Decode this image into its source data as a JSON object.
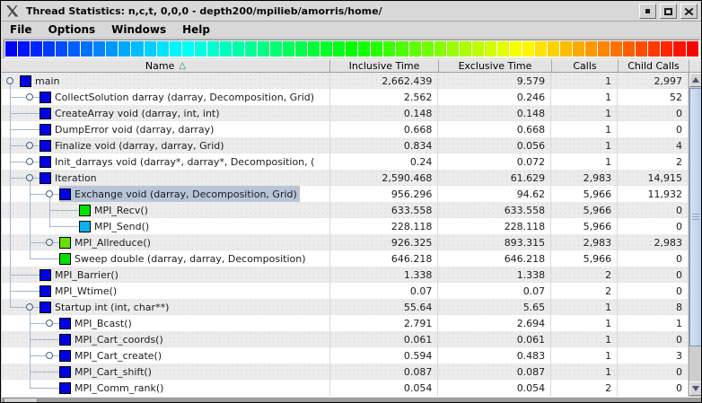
{
  "window": {
    "title": "Thread Statistics: n,c,t, 0,0,0 - depth200/mpilieb/amorris/home/",
    "controls": [
      "minimize",
      "maximize",
      "close"
    ]
  },
  "menu": {
    "items": [
      "File",
      "Options",
      "Windows",
      "Help"
    ]
  },
  "gradient": {
    "type": "color-scale",
    "segments": 55,
    "hue_start": 240,
    "hue_end": 0
  },
  "colors": {
    "selection": "#b7c5d7",
    "stripe": "#ececec",
    "tree_line": "#a4b6cc",
    "sort_indicator": "#0a8585"
  },
  "table": {
    "columns": [
      {
        "key": "name",
        "label": "Name",
        "sort_indicator": "△"
      },
      {
        "key": "inclusive",
        "label": "Inclusive Time"
      },
      {
        "key": "exclusive",
        "label": "Exclusive Time"
      },
      {
        "key": "calls",
        "label": "Calls"
      },
      {
        "key": "child_calls",
        "label": "Child Calls"
      }
    ],
    "rows": [
      {
        "name": "main",
        "depth": 0,
        "node": "expanded",
        "icon": "#0202e2",
        "selected": false,
        "inclusive": "2,662.439",
        "exclusive": "9.579",
        "calls": "1",
        "child_calls": "2,997"
      },
      {
        "name": "CollectSolution darray (darray, Decomposition, Grid)",
        "depth": 1,
        "node": "collapsed",
        "icon": "#0202e2",
        "selected": false,
        "inclusive": "2.562",
        "exclusive": "0.246",
        "calls": "1",
        "child_calls": "52"
      },
      {
        "name": "CreateArray void (darray, int, int)",
        "depth": 1,
        "node": "leaf",
        "icon": "#0202e2",
        "selected": false,
        "inclusive": "0.148",
        "exclusive": "0.148",
        "calls": "1",
        "child_calls": "0"
      },
      {
        "name": "DumpError void (darray, darray)",
        "depth": 1,
        "node": "leaf",
        "icon": "#0202e2",
        "selected": false,
        "inclusive": "0.668",
        "exclusive": "0.668",
        "calls": "1",
        "child_calls": "0"
      },
      {
        "name": "Finalize void (darray, darray, Grid)",
        "depth": 1,
        "node": "collapsed",
        "icon": "#0202e2",
        "selected": false,
        "inclusive": "0.834",
        "exclusive": "0.056",
        "calls": "1",
        "child_calls": "4"
      },
      {
        "name": "Init_darrays void (darray*, darray*, Decomposition, (",
        "depth": 1,
        "node": "collapsed",
        "icon": "#0202e2",
        "selected": false,
        "inclusive": "0.24",
        "exclusive": "0.072",
        "calls": "1",
        "child_calls": "2"
      },
      {
        "name": "Iteration",
        "depth": 1,
        "node": "expanded",
        "icon": "#0202e2",
        "selected": false,
        "inclusive": "2,590.468",
        "exclusive": "61.629",
        "calls": "2,983",
        "child_calls": "14,915"
      },
      {
        "name": "Exchange void (darray, Decomposition, Grid)",
        "depth": 2,
        "node": "expanded",
        "icon": "#0202e2",
        "selected": true,
        "inclusive": "956.296",
        "exclusive": "94.62",
        "calls": "5,966",
        "child_calls": "11,932"
      },
      {
        "name": "MPI_Recv()",
        "depth": 3,
        "node": "leaf",
        "icon": "#02e002",
        "selected": false,
        "inclusive": "633.558",
        "exclusive": "633.558",
        "calls": "5,966",
        "child_calls": "0"
      },
      {
        "name": "MPI_Send()",
        "depth": 3,
        "node": "leaf",
        "icon": "#0ab2ec",
        "selected": false,
        "inclusive": "228.118",
        "exclusive": "228.118",
        "calls": "5,966",
        "child_calls": "0"
      },
      {
        "name": "MPI_Allreduce()",
        "depth": 2,
        "node": "collapsed",
        "icon": "#66e002",
        "selected": false,
        "inclusive": "926.325",
        "exclusive": "893.315",
        "calls": "2,983",
        "child_calls": "2,983"
      },
      {
        "name": "Sweep double (darray, darray, Decomposition)",
        "depth": 2,
        "node": "leaf",
        "icon": "#02e002",
        "selected": false,
        "inclusive": "646.218",
        "exclusive": "646.218",
        "calls": "5,966",
        "child_calls": "0"
      },
      {
        "name": "MPI_Barrier()",
        "depth": 1,
        "node": "leaf",
        "icon": "#0202e2",
        "selected": false,
        "inclusive": "1.338",
        "exclusive": "1.338",
        "calls": "2",
        "child_calls": "0"
      },
      {
        "name": "MPI_Wtime()",
        "depth": 1,
        "node": "leaf",
        "icon": "#0202e2",
        "selected": false,
        "inclusive": "0.07",
        "exclusive": "0.07",
        "calls": "2",
        "child_calls": "0"
      },
      {
        "name": "Startup int (int, char**)",
        "depth": 1,
        "node": "expanded",
        "icon": "#0202e2",
        "selected": false,
        "inclusive": "55.64",
        "exclusive": "5.65",
        "calls": "1",
        "child_calls": "8"
      },
      {
        "name": "MPI_Bcast()",
        "depth": 2,
        "node": "collapsed",
        "icon": "#0202e2",
        "selected": false,
        "inclusive": "2.791",
        "exclusive": "2.694",
        "calls": "1",
        "child_calls": "1"
      },
      {
        "name": "MPI_Cart_coords()",
        "depth": 2,
        "node": "leaf",
        "icon": "#0202e2",
        "selected": false,
        "inclusive": "0.061",
        "exclusive": "0.061",
        "calls": "1",
        "child_calls": "0"
      },
      {
        "name": "MPI_Cart_create()",
        "depth": 2,
        "node": "collapsed",
        "icon": "#0202e2",
        "selected": false,
        "inclusive": "0.594",
        "exclusive": "0.483",
        "calls": "1",
        "child_calls": "3"
      },
      {
        "name": "MPI_Cart_shift()",
        "depth": 2,
        "node": "leaf",
        "icon": "#0202e2",
        "selected": false,
        "inclusive": "0.087",
        "exclusive": "0.087",
        "calls": "1",
        "child_calls": "0"
      },
      {
        "name": "MPI_Comm_rank()",
        "depth": 2,
        "node": "leaf",
        "icon": "#0202e2",
        "selected": false,
        "inclusive": "0.054",
        "exclusive": "0.054",
        "calls": "2",
        "child_calls": "0"
      }
    ]
  }
}
